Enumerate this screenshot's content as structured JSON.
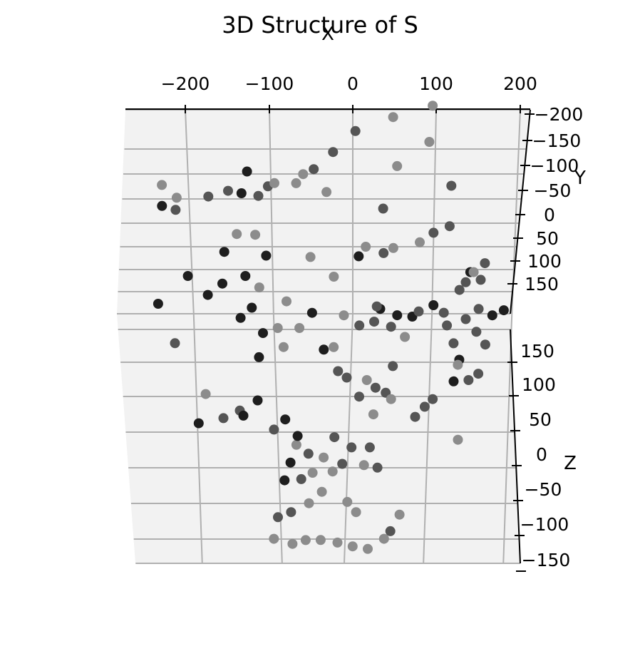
{
  "chart_data": {
    "type": "scatter3d",
    "title": "3D Structure of S",
    "xlabel": "X",
    "ylabel": "Y",
    "zlabel": "Z",
    "x_ticks": [
      -200,
      -100,
      0,
      100,
      200
    ],
    "y_ticks": [
      -200,
      -150,
      -100,
      -50,
      0,
      50,
      100,
      150
    ],
    "z_ticks": [
      150,
      100,
      50,
      0,
      -50,
      -100,
      -150
    ],
    "x_tick_labels": [
      "−200",
      "−100",
      "0",
      "100",
      "200"
    ],
    "y_tick_labels": [
      "−200",
      "−150",
      "−100",
      "−50",
      "0",
      "50",
      "100",
      "150"
    ],
    "z_tick_labels": [
      "150",
      "100",
      "50",
      "0",
      "−50",
      "−100",
      "−150"
    ],
    "grid": true,
    "colormap": "grayscale (darker = nearer)",
    "colors": {
      "dark": "#1e1e1e",
      "mid": "#555555",
      "light": "#8c8c8c"
    },
    "points": [
      [
        -221,
        -130,
        95,
        2
      ],
      [
        -204,
        -115,
        90,
        2
      ],
      [
        -222,
        -112,
        80,
        0
      ],
      [
        -206,
        -100,
        86,
        1
      ],
      [
        -166,
        -112,
        95,
        1
      ],
      [
        -142,
        -118,
        98,
        1
      ],
      [
        -126,
        -120,
        92,
        0
      ],
      [
        -106,
        -113,
        95,
        1
      ],
      [
        -94,
        -121,
        102,
        1
      ],
      [
        -86,
        -128,
        100,
        2
      ],
      [
        -60,
        -125,
        103,
        2
      ],
      [
        -38,
        -140,
        110,
        1
      ],
      [
        -14,
        -152,
        125,
        1
      ],
      [
        14,
        -170,
        140,
        1
      ],
      [
        60,
        -182,
        150,
        2
      ],
      [
        108,
        -190,
        160,
        2
      ],
      [
        -118,
        -150,
        96,
        0
      ],
      [
        -51,
        -140,
        102,
        2
      ],
      [
        -24,
        -118,
        96,
        2
      ],
      [
        43,
        -102,
        86,
        1
      ],
      [
        62,
        -135,
        120,
        2
      ],
      [
        102,
        -158,
        135,
        2
      ],
      [
        126,
        -120,
        104,
        1
      ],
      [
        122,
        -100,
        60,
        1
      ],
      [
        11,
        -58,
        55,
        0
      ],
      [
        41,
        -62,
        56,
        1
      ],
      [
        102,
        -78,
        72,
        1
      ],
      [
        144,
        -46,
        42,
        0
      ],
      [
        162,
        -56,
        46,
        1
      ],
      [
        182,
        -12,
        16,
        0
      ],
      [
        168,
        -8,
        12,
        0
      ],
      [
        -112,
        -72,
        75,
        2
      ],
      [
        -100,
        -58,
        56,
        0
      ],
      [
        -134,
        -78,
        70,
        2
      ],
      [
        -150,
        -60,
        60,
        0
      ],
      [
        -126,
        -40,
        42,
        0
      ],
      [
        -110,
        -30,
        34,
        2
      ],
      [
        -195,
        -42,
        40,
        0
      ],
      [
        -172,
        -30,
        22,
        0
      ],
      [
        -232,
        -28,
        10,
        0
      ],
      [
        -154,
        -36,
        34,
        0
      ],
      [
        -134,
        -8,
        8,
        0
      ],
      [
        -47,
        -54,
        58,
        2
      ],
      [
        -20,
        -36,
        45,
        2
      ],
      [
        20,
        -68,
        60,
        2
      ],
      [
        53,
        -68,
        58,
        2
      ],
      [
        85,
        -72,
        63,
        2
      ],
      [
        156,
        -38,
        38,
        1
      ],
      [
        138,
        -40,
        32,
        1
      ],
      [
        148,
        -48,
        40,
        2
      ],
      [
        110,
        -16,
        8,
        1
      ],
      [
        54,
        -16,
        4,
        0
      ],
      [
        72,
        -8,
        10,
        0
      ],
      [
        34,
        -20,
        10,
        0
      ],
      [
        -78,
        -22,
        20,
        2
      ],
      [
        -48,
        -10,
        14,
        0
      ],
      [
        -10,
        -8,
        12,
        2
      ],
      [
        -90,
        0,
        0,
        2
      ],
      [
        -64,
        -2,
        -2,
        2
      ],
      [
        -120,
        -16,
        16,
        0
      ],
      [
        -24,
        18,
        -12,
        2
      ],
      [
        8,
        -2,
        2,
        1
      ],
      [
        26,
        -6,
        4,
        1
      ],
      [
        46,
        -2,
        0,
        1
      ],
      [
        62,
        8,
        -6,
        2
      ],
      [
        80,
        -14,
        12,
        1
      ],
      [
        98,
        -18,
        18,
        0
      ],
      [
        113,
        -2,
        2,
        1
      ],
      [
        120,
        12,
        -12,
        1
      ],
      [
        136,
        -8,
        6,
        1
      ],
      [
        148,
        2,
        -4,
        1
      ],
      [
        158,
        14,
        -12,
        1
      ],
      [
        152,
        -16,
        14,
        1
      ],
      [
        130,
        -32,
        28,
        1
      ],
      [
        126,
        26,
        -24,
        0
      ],
      [
        124,
        30,
        -28,
        2
      ],
      [
        136,
        42,
        -40,
        1
      ],
      [
        148,
        38,
        -34,
        1
      ],
      [
        -114,
        22,
        -24,
        0
      ],
      [
        -108,
        4,
        -4,
        0
      ],
      [
        -84,
        16,
        -14,
        2
      ],
      [
        -20,
        34,
        -34,
        1
      ],
      [
        -36,
        18,
        -16,
        0
      ],
      [
        -10,
        42,
        -36,
        1
      ],
      [
        4,
        56,
        -52,
        1
      ],
      [
        14,
        42,
        -40,
        2
      ],
      [
        24,
        48,
        -46,
        1
      ],
      [
        36,
        52,
        -50,
        1
      ],
      [
        42,
        58,
        -54,
        2
      ],
      [
        70,
        72,
        -68,
        1
      ],
      [
        82,
        64,
        -60,
        1
      ],
      [
        92,
        56,
        -56,
        1
      ],
      [
        118,
        44,
        -40,
        0
      ],
      [
        -140,
        68,
        -62,
        1
      ],
      [
        -190,
        78,
        -72,
        0
      ],
      [
        -160,
        74,
        -68,
        1
      ],
      [
        -136,
        72,
        -66,
        0
      ],
      [
        -118,
        58,
        -56,
        0
      ],
      [
        -100,
        82,
        -78,
        1
      ],
      [
        -86,
        74,
        -70,
        0
      ],
      [
        -74,
        96,
        -88,
        2
      ],
      [
        -72,
        88,
        -82,
        0
      ],
      [
        -60,
        102,
        -96,
        1
      ],
      [
        -42,
        104,
        -100,
        2
      ],
      [
        -28,
        88,
        -84,
        1
      ],
      [
        -20,
        110,
        -104,
        1
      ],
      [
        -8,
        96,
        -92,
        1
      ],
      [
        6,
        110,
        -106,
        2
      ],
      [
        14,
        96,
        -92,
        1
      ],
      [
        22,
        112,
        -108,
        1
      ],
      [
        -82,
        108,
        -104,
        0
      ],
      [
        -70,
        122,
        -116,
        1
      ],
      [
        -56,
        116,
        -112,
        2
      ],
      [
        -46,
        132,
        -126,
        2
      ],
      [
        -32,
        116,
        -110,
        2
      ],
      [
        -16,
        140,
        -134,
        2
      ],
      [
        -6,
        148,
        -142,
        2
      ],
      [
        -84,
        148,
        -142,
        1
      ],
      [
        -90,
        122,
        -118,
        0
      ],
      [
        -106,
        170,
        -162,
        2
      ],
      [
        -84,
        174,
        -166,
        2
      ],
      [
        -68,
        172,
        -162,
        2
      ],
      [
        -50,
        170,
        -164,
        2
      ],
      [
        -30,
        172,
        -166,
        2
      ],
      [
        -12,
        176,
        -168,
        2
      ],
      [
        6,
        178,
        -170,
        2
      ],
      [
        26,
        170,
        -162,
        2
      ],
      [
        34,
        164,
        -156,
        1
      ],
      [
        46,
        150,
        -144,
        2
      ],
      [
        -100,
        152,
        -146,
        1
      ],
      [
        -62,
        140,
        -136,
        2
      ],
      [
        20,
        70,
        -66,
        2
      ],
      [
        46,
        30,
        -30,
        1
      ],
      [
        30,
        -20,
        14,
        1
      ],
      [
        -180,
        54,
        -50,
        2
      ],
      [
        -214,
        10,
        -14,
        1
      ],
      [
        120,
        90,
        -86,
        2
      ]
    ]
  }
}
